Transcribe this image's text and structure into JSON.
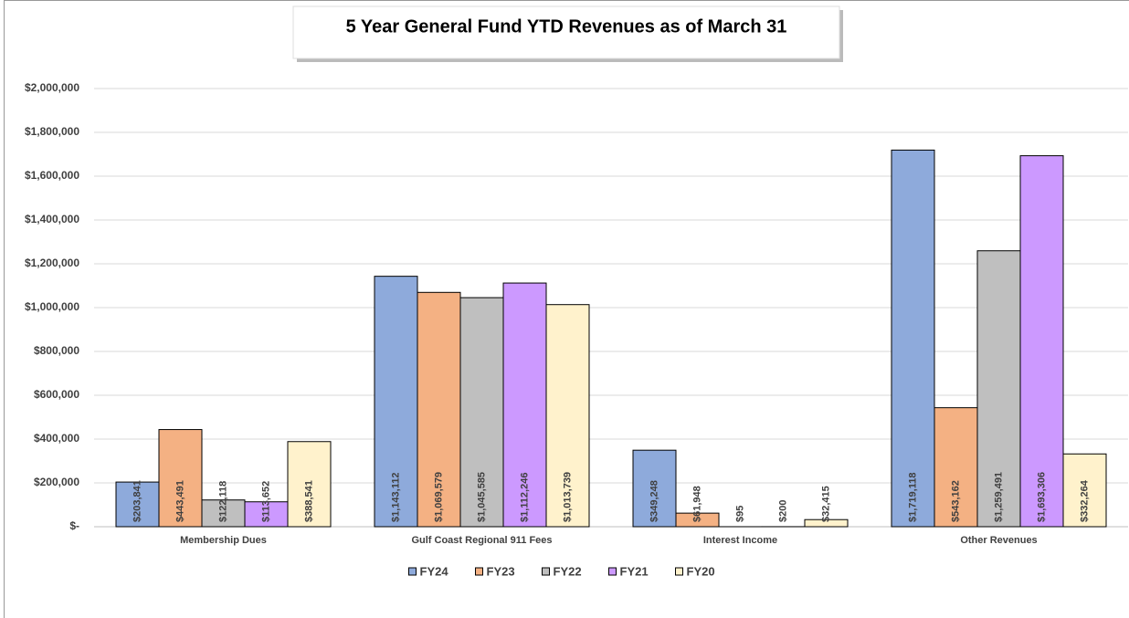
{
  "chart_data": {
    "type": "bar",
    "title": "5 Year General Fund YTD Revenues as of March 31",
    "categories": [
      "Membership Dues",
      "Gulf Coast Regional 911 Fees",
      "Interest Income",
      "Other Revenues"
    ],
    "series": [
      {
        "name": "FY24",
        "color": "#8eaadb",
        "values": [
          203841,
          1143112,
          349248,
          1719118
        ],
        "value_labels": [
          "$203,841",
          "$1,143,112",
          "$349,248",
          "$1,719,118"
        ]
      },
      {
        "name": "FY23",
        "color": "#f4b183",
        "values": [
          443491,
          1069579,
          61948,
          543162
        ],
        "value_labels": [
          "$443,491",
          "$1,069,579",
          "$61,948",
          "$543,162"
        ]
      },
      {
        "name": "FY22",
        "color": "#bfbfbf",
        "values": [
          122118,
          1045585,
          95,
          1259491
        ],
        "value_labels": [
          "$122,118",
          "$1,045,585",
          "$95",
          "$1,259,491"
        ]
      },
      {
        "name": "FY21",
        "color": "#cc99ff",
        "values": [
          113652,
          1112246,
          200,
          1693306
        ],
        "value_labels": [
          "$113,652",
          "$1,112,246",
          "$200",
          "$1,693,306"
        ]
      },
      {
        "name": "FY20",
        "color": "#fff2cc",
        "values": [
          388541,
          1013739,
          32415,
          332264
        ],
        "value_labels": [
          "$388,541",
          "$1,013,739",
          "$32,415",
          "$332,264"
        ]
      }
    ],
    "ylim": [
      0,
      2000000
    ],
    "yticks": [
      {
        "value": 0,
        "label": "$-"
      },
      {
        "value": 200000,
        "label": "$200,000"
      },
      {
        "value": 400000,
        "label": "$400,000"
      },
      {
        "value": 600000,
        "label": "$600,000"
      },
      {
        "value": 800000,
        "label": "$800,000"
      },
      {
        "value": 1000000,
        "label": "$1,000,000"
      },
      {
        "value": 1200000,
        "label": "$1,200,000"
      },
      {
        "value": 1400000,
        "label": "$1,400,000"
      },
      {
        "value": 1600000,
        "label": "$1,600,000"
      },
      {
        "value": 1800000,
        "label": "$1,800,000"
      },
      {
        "value": 2000000,
        "label": "$2,000,000"
      }
    ],
    "grid": true,
    "legend": "bottom"
  }
}
